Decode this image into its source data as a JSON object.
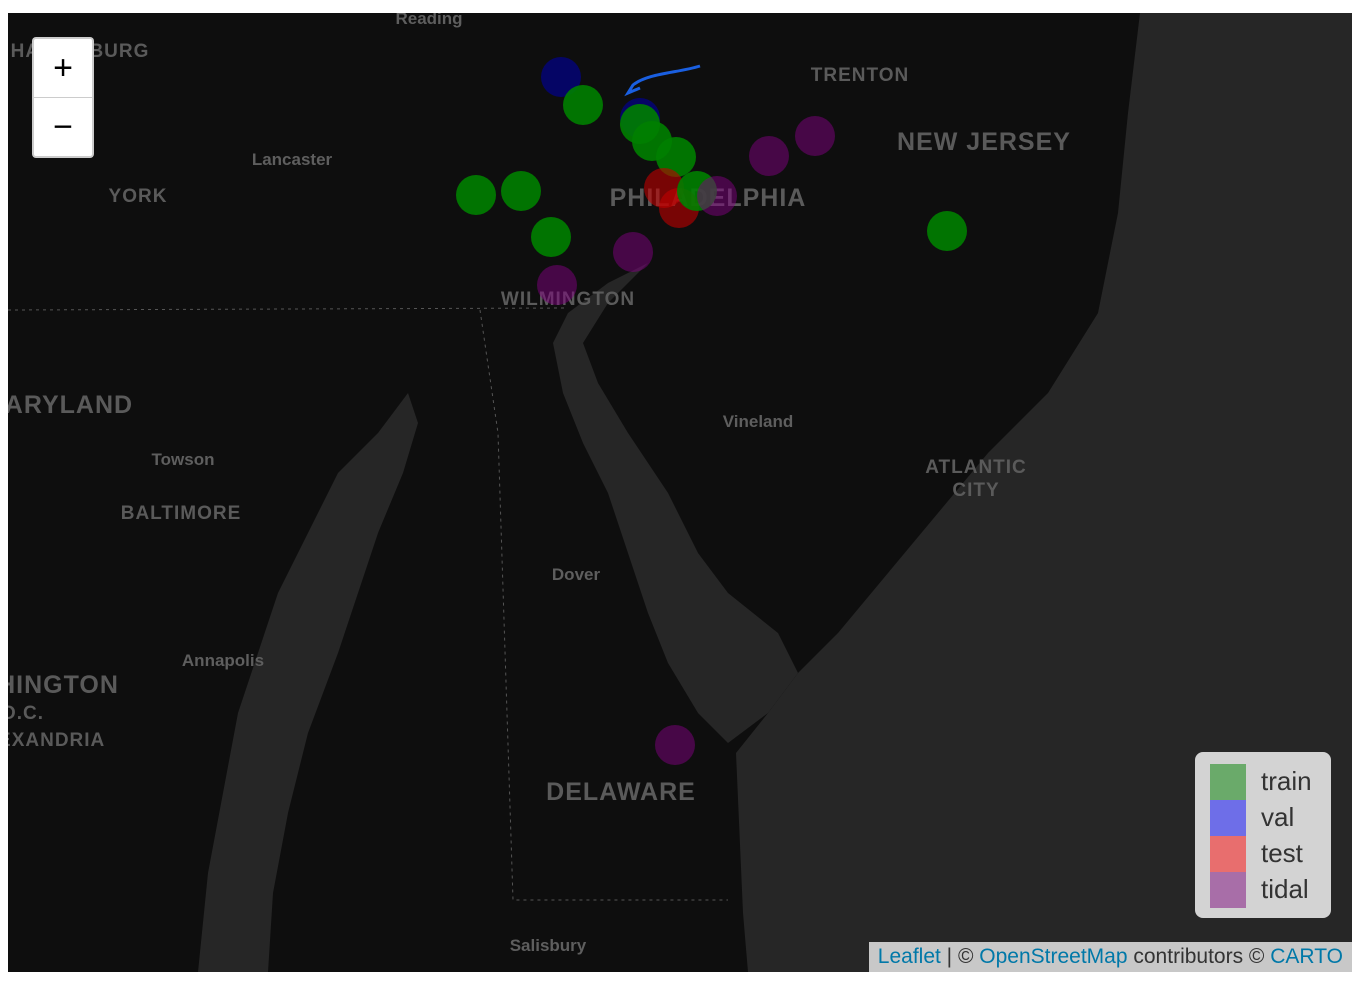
{
  "zoom": {
    "in": "+",
    "out": "−"
  },
  "places": [
    "Reading",
    "HARRISBURG",
    "TRENTON",
    "NEW JERSEY",
    "Lancaster",
    "YORK",
    "PHILADELPHIA",
    "WILMINGTON",
    "MARYLAND",
    "Vineland",
    "Towson",
    "ATLANTIC",
    "CITY",
    "BALTIMORE",
    "Dover",
    "Annapolis",
    "WASHINGTON",
    "D.C.",
    "ALEXANDRIA",
    "DELAWARE",
    "Salisbury"
  ],
  "legend": [
    {
      "name": "train",
      "color": "#008000",
      "swatch": "#6aaa6a"
    },
    {
      "name": "val",
      "color": "#0000a0",
      "swatch": "#6e6ee8"
    },
    {
      "name": "test",
      "color": "#c00000",
      "swatch": "#e86e6e"
    },
    {
      "name": "tidal",
      "color": "#800080",
      "swatch": "#a86ea8"
    }
  ],
  "attribution": {
    "leaflet": "Leaflet",
    "sep": " | © ",
    "osm": "OpenStreetMap",
    "mid": " contributors © ",
    "carto": "CARTO"
  }
}
